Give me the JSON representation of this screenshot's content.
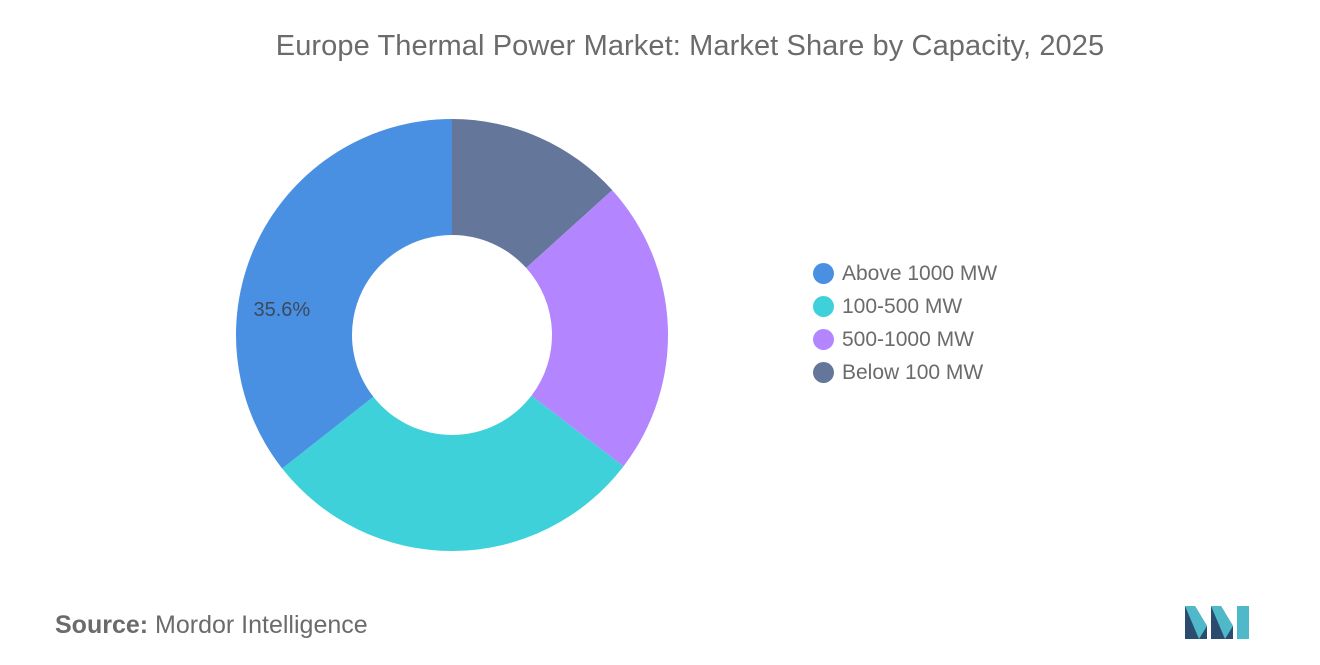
{
  "title": "Europe Thermal Power Market: Market Share by Capacity, 2025",
  "chart_data": {
    "type": "pie",
    "style": "donut",
    "title": "Europe Thermal Power Market: Market Share by Capacity, 2025",
    "unit": "%",
    "start": "12 o'clock, clockwise",
    "legend_position": "right",
    "series": [
      {
        "name": "Below 100 MW",
        "value": 13.3,
        "color": "#64779a"
      },
      {
        "name": "500-1000 MW",
        "value": 22.1,
        "color": "#b386ff"
      },
      {
        "name": "100-500 MW",
        "value": 29.0,
        "color": "#3fd1da"
      },
      {
        "name": "Above 1000 MW",
        "value": 35.6,
        "color": "#4a90e2",
        "label": "35.6%"
      }
    ]
  },
  "legend": {
    "items": [
      {
        "label": "Above 1000 MW",
        "color": "#4a90e2"
      },
      {
        "label": "100-500 MW",
        "color": "#3fd1da"
      },
      {
        "label": "500-1000 MW",
        "color": "#b386ff"
      },
      {
        "label": "Below 100 MW",
        "color": "#64779a"
      }
    ]
  },
  "source": {
    "label": "Source:",
    "text": "Mordor Intelligence"
  },
  "logo": {
    "icon": "mordor-intelligence-logo-icon",
    "colors": [
      "#2b4b6f",
      "#4fb8c9"
    ]
  }
}
